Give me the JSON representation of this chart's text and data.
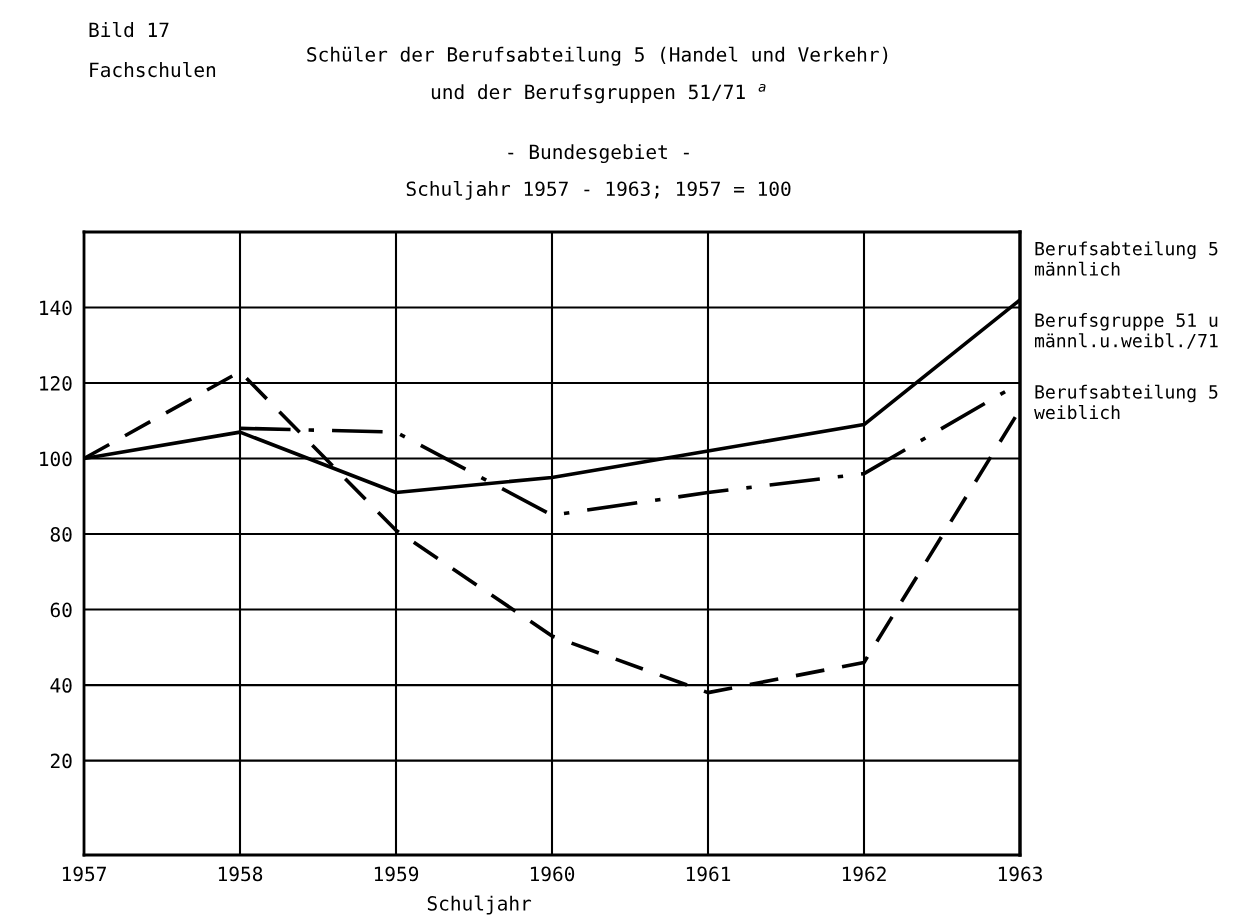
{
  "chart_data": {
    "type": "line",
    "title": "Schüler der Berufsabteilung 5 (Handel und Verkehr)\nund der Berufsgruppen 51/71 $^{a}$",
    "subtitle": "- Bundesgebiet -\nSchuljahr 1957 - 1963; 1957 = 100",
    "annotations": [
      "Bild 17",
      "Fachschulen"
    ],
    "xlabel": "Schuljahr",
    "x": [
      1957,
      1958,
      1959,
      1960,
      1961,
      1962,
      1963
    ],
    "series": [
      {
        "name": "Berufsabteilung 5\nmännlich",
        "color": "#000000",
        "line_style": "solid",
        "values": [
          100,
          107,
          91,
          95,
          102,
          109,
          142
        ]
      },
      {
        "name": "Berufsgruppe 51 u\nmännl.u.weibl./71",
        "color": "#000000",
        "line_style": "dashdot",
        "values": [
          null,
          108,
          107,
          85,
          91,
          96,
          120
        ]
      },
      {
        "name": "Berufsabteilung 5\nweiblich",
        "color": "#000000",
        "line_style": "dashed",
        "values": [
          100,
          123,
          81,
          53,
          38,
          46,
          113
        ]
      }
    ],
    "xlim": [
      1957,
      1963
    ],
    "xticks": [
      1957,
      1958,
      1959,
      1960,
      1961,
      1962,
      1963
    ],
    "ylim": [
      -5,
      160
    ],
    "yticks": [
      20,
      40,
      60,
      80,
      100,
      120,
      140
    ],
    "grid": true,
    "marker": "none"
  }
}
